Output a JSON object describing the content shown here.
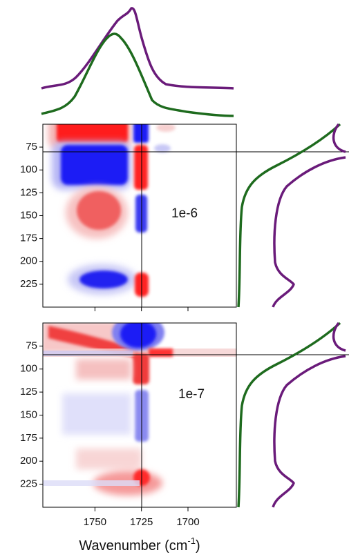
{
  "chart_data": [
    {
      "type": "contour",
      "label": "1e-6",
      "xlim": [
        1778,
        1674
      ],
      "ylim": [
        250,
        50
      ],
      "yticks": [
        75,
        100,
        125,
        150,
        175,
        200,
        225
      ]
    },
    {
      "type": "contour",
      "label": "1e-7",
      "xlim": [
        1778,
        1674
      ],
      "ylim": [
        250,
        50
      ],
      "yticks": [
        75,
        100,
        125,
        150,
        175,
        200,
        225
      ],
      "xticks": [
        1750,
        1725,
        1700
      ],
      "xlabel": "Wavenumber (cm",
      "xlabel_superscript": "-1",
      "xlabel_end": ")"
    }
  ]
}
